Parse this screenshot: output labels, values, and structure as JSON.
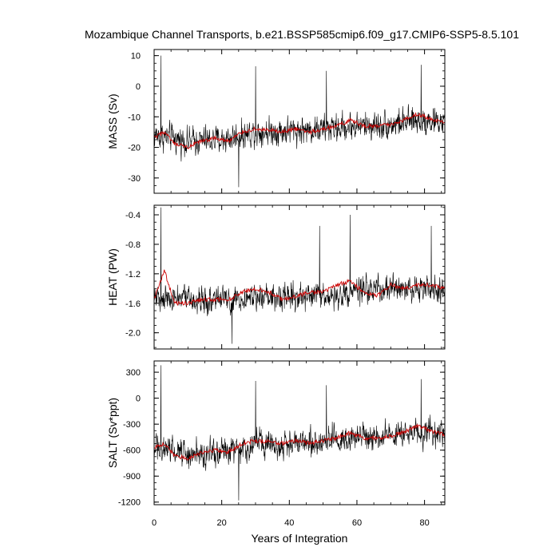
{
  "page": {
    "title": "Mozambique Channel Transports, b.e21.BSSP585cmip6.f09_g17.CMIP6-SSP5-8.5.101"
  },
  "colors": {
    "raw_series": "#000000",
    "smoothed_series": "#cc0000",
    "frame": "#000000",
    "background": "#ffffff"
  },
  "chart_data": [
    {
      "type": "line",
      "panel": "mass",
      "ylabel": "MASS (Sv)",
      "xlim": [
        0,
        86
      ],
      "ylim": [
        -35,
        12
      ],
      "yticks": [
        10,
        0,
        -10,
        -20,
        -30
      ],
      "ytick_labels": [
        "10",
        "0",
        "-10",
        "-20",
        "-30"
      ],
      "grid": false,
      "sampling": "monthly, 1032 points over years 0-86",
      "series": [
        {
          "role": "raw",
          "color": "#000000",
          "baseline": [
            [
              0,
              -16
            ],
            [
              10,
              -18
            ],
            [
              20,
              -17.5
            ],
            [
              30,
              -15
            ],
            [
              40,
              -14.5
            ],
            [
              50,
              -14
            ],
            [
              60,
              -13
            ],
            [
              70,
              -12.5
            ],
            [
              80,
              -11
            ],
            [
              86,
              -12
            ]
          ],
          "spread": 5.5,
          "extremes": [
            [
              2,
              10
            ],
            [
              30,
              6.5
            ],
            [
              51,
              5
            ],
            [
              79,
              7
            ],
            [
              25,
              -33
            ]
          ]
        },
        {
          "role": "smoothed",
          "color": "#cc0000",
          "points": [
            [
              0,
              -17
            ],
            [
              3,
              -15
            ],
            [
              6,
              -19
            ],
            [
              10,
              -20
            ],
            [
              14,
              -18
            ],
            [
              18,
              -17
            ],
            [
              22,
              -18
            ],
            [
              26,
              -15
            ],
            [
              30,
              -14
            ],
            [
              34,
              -14.5
            ],
            [
              38,
              -15
            ],
            [
              42,
              -14
            ],
            [
              46,
              -15
            ],
            [
              50,
              -14
            ],
            [
              54,
              -13
            ],
            [
              58,
              -11
            ],
            [
              62,
              -13
            ],
            [
              66,
              -13
            ],
            [
              70,
              -12.5
            ],
            [
              74,
              -11
            ],
            [
              78,
              -9
            ],
            [
              82,
              -11
            ],
            [
              86,
              -12
            ]
          ]
        }
      ]
    },
    {
      "type": "line",
      "panel": "heat",
      "ylabel": "HEAT (PW)",
      "xlim": [
        0,
        86
      ],
      "ylim": [
        -2.22,
        -0.27
      ],
      "yticks": [
        -0.4,
        -0.8,
        -1.2,
        -1.6,
        -2.0
      ],
      "ytick_labels": [
        "-0.4",
        "-0.8",
        "-1.2",
        "-1.6",
        "-2.0"
      ],
      "grid": false,
      "sampling": "monthly, 1032 points over years 0-86",
      "series": [
        {
          "role": "raw",
          "color": "#000000",
          "baseline": [
            [
              0,
              -1.5
            ],
            [
              10,
              -1.55
            ],
            [
              20,
              -1.55
            ],
            [
              30,
              -1.5
            ],
            [
              40,
              -1.5
            ],
            [
              50,
              -1.5
            ],
            [
              60,
              -1.45
            ],
            [
              70,
              -1.4
            ],
            [
              80,
              -1.4
            ],
            [
              86,
              -1.45
            ]
          ],
          "spread": 0.22,
          "extremes": [
            [
              2,
              -0.3
            ],
            [
              58,
              -0.4
            ],
            [
              49,
              -0.55
            ],
            [
              82,
              -0.55
            ],
            [
              23,
              -2.15
            ]
          ]
        },
        {
          "role": "smoothed",
          "color": "#cc0000",
          "points": [
            [
              0,
              -1.55
            ],
            [
              3,
              -1.15
            ],
            [
              6,
              -1.6
            ],
            [
              10,
              -1.6
            ],
            [
              14,
              -1.55
            ],
            [
              18,
              -1.55
            ],
            [
              22,
              -1.55
            ],
            [
              26,
              -1.45
            ],
            [
              30,
              -1.4
            ],
            [
              34,
              -1.45
            ],
            [
              38,
              -1.55
            ],
            [
              42,
              -1.5
            ],
            [
              46,
              -1.45
            ],
            [
              50,
              -1.45
            ],
            [
              54,
              -1.35
            ],
            [
              58,
              -1.3
            ],
            [
              62,
              -1.45
            ],
            [
              66,
              -1.5
            ],
            [
              70,
              -1.35
            ],
            [
              74,
              -1.4
            ],
            [
              78,
              -1.35
            ],
            [
              82,
              -1.35
            ],
            [
              86,
              -1.4
            ]
          ]
        }
      ]
    },
    {
      "type": "line",
      "panel": "salt",
      "ylabel": "SALT (Sv*ppt)",
      "xlabel": "Years of Integration",
      "xlim": [
        0,
        86
      ],
      "xticks": [
        0,
        20,
        40,
        60,
        80
      ],
      "xtick_labels": [
        "0",
        "20",
        "40",
        "60",
        "80"
      ],
      "ylim": [
        -1230,
        430
      ],
      "yticks": [
        300,
        0,
        -300,
        -600,
        -900,
        -1200
      ],
      "ytick_labels": [
        "300",
        "0",
        "-300",
        "-600",
        "-900",
        "-1200"
      ],
      "grid": false,
      "sampling": "monthly, 1032 points over years 0-86",
      "series": [
        {
          "role": "raw",
          "color": "#000000",
          "baseline": [
            [
              0,
              -560
            ],
            [
              10,
              -640
            ],
            [
              20,
              -620
            ],
            [
              30,
              -530
            ],
            [
              40,
              -510
            ],
            [
              50,
              -490
            ],
            [
              60,
              -450
            ],
            [
              70,
              -430
            ],
            [
              80,
              -400
            ],
            [
              86,
              -420
            ]
          ],
          "spread": 190,
          "extremes": [
            [
              2,
              380
            ],
            [
              30,
              200
            ],
            [
              51,
              150
            ],
            [
              79,
              220
            ],
            [
              25,
              -1180
            ]
          ]
        },
        {
          "role": "smoothed",
          "color": "#cc0000",
          "points": [
            [
              0,
              -580
            ],
            [
              3,
              -520
            ],
            [
              6,
              -660
            ],
            [
              10,
              -700
            ],
            [
              14,
              -630
            ],
            [
              18,
              -600
            ],
            [
              22,
              -620
            ],
            [
              26,
              -530
            ],
            [
              30,
              -490
            ],
            [
              34,
              -500
            ],
            [
              38,
              -520
            ],
            [
              42,
              -490
            ],
            [
              46,
              -520
            ],
            [
              50,
              -490
            ],
            [
              54,
              -460
            ],
            [
              58,
              -400
            ],
            [
              62,
              -460
            ],
            [
              66,
              -460
            ],
            [
              70,
              -440
            ],
            [
              74,
              -390
            ],
            [
              78,
              -320
            ],
            [
              82,
              -380
            ],
            [
              86,
              -420
            ]
          ]
        }
      ]
    }
  ]
}
